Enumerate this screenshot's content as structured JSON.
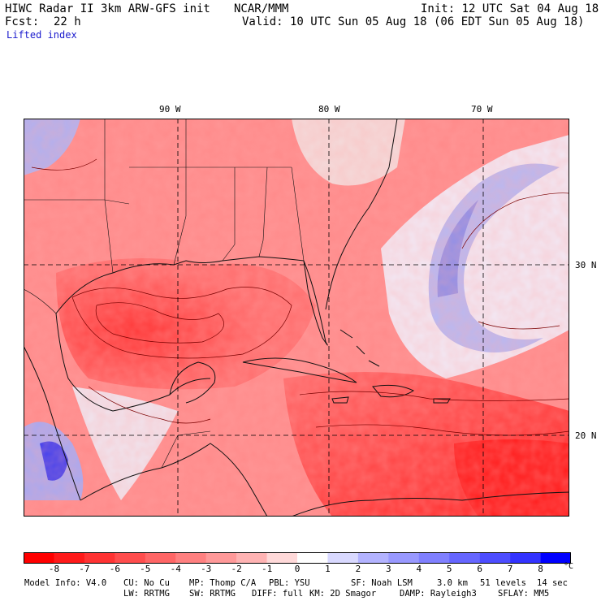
{
  "header": {
    "title_left": "HIWC Radar II 3km ARW-GFS init",
    "title_mid": "NCAR/MMM",
    "init": "Init: 12 UTC Sat 04 Aug 18",
    "fcst_label": "Fcst:",
    "fcst_value": "22 h",
    "valid": "Valid: 10 UTC Sun 05 Aug 18 (06 EDT Sun 05 Aug 18)",
    "field": "Lifted index"
  },
  "axes": {
    "lon_labels": [
      "90 W",
      "80 W",
      "70 W"
    ],
    "lat_labels": [
      "30 N",
      "20 N"
    ]
  },
  "colorbar": {
    "labels": [
      "-8",
      "-7",
      "-6",
      "-5",
      "-4",
      "-3",
      "-2",
      "-1",
      "0",
      "1",
      "2",
      "3",
      "4",
      "5",
      "6",
      "7",
      "8"
    ],
    "unit": "°C",
    "colors": [
      "#ff0000",
      "#ff1a1a",
      "#ff3333",
      "#ff4d4d",
      "#ff6666",
      "#ff8080",
      "#ff9999",
      "#ffb3b3",
      "#ffd9d9",
      "#ffffff",
      "#d9d9ff",
      "#b3b3ff",
      "#9999ff",
      "#8080ff",
      "#6666ff",
      "#4d4dff",
      "#3333ff",
      "#0000ff"
    ]
  },
  "footer": {
    "model_info": "Model Info: V4.0",
    "cu": "CU: No Cu",
    "mp": "MP: Thomp C/A",
    "pbl": "PBL: YSU",
    "sf": "SF: Noah LSM",
    "res": "3.0 km",
    "levels": "51 levels",
    "dt": "14 sec",
    "lw": "LW: RRTMG",
    "sw": "SW: RRTMG",
    "diff": "DIFF: full",
    "km": "KM: 2D Smagor",
    "damp": "DAMP: Rayleigh3",
    "sflay": "SFLAY: MM5"
  }
}
